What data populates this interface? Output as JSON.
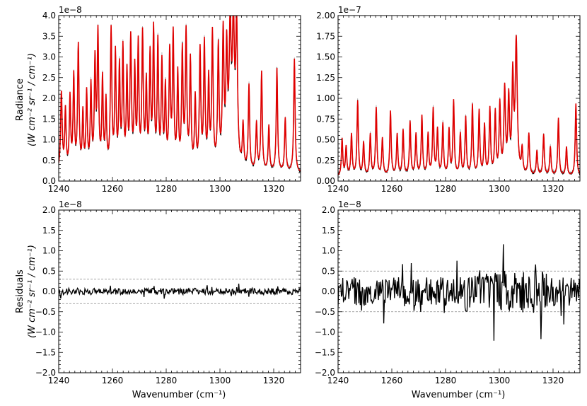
{
  "figure": {
    "xlabel": "Wavenumber (cm⁻¹)",
    "ylabel_top": "Radiance",
    "ylabel_top_units": "(W cm⁻² sr⁻¹ / cm⁻¹)",
    "ylabel_bottom": "Residuals",
    "ylabel_bottom_units": "(W cm⁻² sr⁻¹ / cm⁻¹)"
  },
  "chart_data": [
    {
      "type": "line",
      "panel": "top-left",
      "xlabel": "",
      "ylabel": "Radiance (W cm⁻² sr⁻¹ / cm⁻¹)",
      "xlim": [
        1240,
        1330
      ],
      "ylim": [
        0,
        4.0
      ],
      "offset_label": "1e−8",
      "xticks": [
        1240,
        1260,
        1280,
        1300,
        1320
      ],
      "yticks": [
        "0.0",
        "0.5",
        "1.0",
        "1.5",
        "2.0",
        "2.5",
        "3.0",
        "3.5",
        "4.0"
      ],
      "series_colors": {
        "observed": "#000000",
        "model": "#e00000",
        "upper": "#aaaaaa"
      },
      "peaks": [
        [
          1241.0,
          1.9,
          0.35
        ],
        [
          1242.5,
          1.45,
          0.3
        ],
        [
          1244.2,
          1.75,
          0.3
        ],
        [
          1245.6,
          2.25,
          0.3
        ],
        [
          1247.3,
          3.0,
          0.32
        ],
        [
          1249.0,
          1.35,
          0.28
        ],
        [
          1250.4,
          1.85,
          0.3
        ],
        [
          1252.0,
          2.0,
          0.3
        ],
        [
          1253.5,
          2.55,
          0.3
        ],
        [
          1254.6,
          3.25,
          0.32
        ],
        [
          1256.3,
          2.15,
          0.3
        ],
        [
          1257.6,
          1.6,
          0.28
        ],
        [
          1259.5,
          3.35,
          0.32
        ],
        [
          1261.1,
          2.75,
          0.3
        ],
        [
          1262.6,
          2.4,
          0.3
        ],
        [
          1263.9,
          2.85,
          0.3
        ],
        [
          1265.4,
          2.25,
          0.3
        ],
        [
          1266.8,
          3.1,
          0.32
        ],
        [
          1268.3,
          2.35,
          0.3
        ],
        [
          1269.6,
          2.95,
          0.3
        ],
        [
          1271.2,
          3.2,
          0.32
        ],
        [
          1272.6,
          2.0,
          0.3
        ],
        [
          1274.0,
          2.65,
          0.3
        ],
        [
          1275.3,
          3.3,
          0.32
        ],
        [
          1276.9,
          3.0,
          0.3
        ],
        [
          1278.4,
          2.5,
          0.3
        ],
        [
          1279.7,
          1.9,
          0.3
        ],
        [
          1281.3,
          2.75,
          0.32
        ],
        [
          1282.6,
          3.2,
          0.32
        ],
        [
          1284.3,
          2.25,
          0.3
        ],
        [
          1286.0,
          2.8,
          0.32
        ],
        [
          1287.4,
          3.25,
          0.32
        ],
        [
          1289.0,
          2.6,
          0.3
        ],
        [
          1290.8,
          1.7,
          0.3
        ],
        [
          1292.6,
          2.85,
          0.32
        ],
        [
          1294.2,
          3.0,
          0.32
        ],
        [
          1295.8,
          2.1,
          0.3
        ],
        [
          1297.2,
          3.25,
          0.32
        ],
        [
          1299.4,
          2.9,
          0.32
        ],
        [
          1301.2,
          3.2,
          0.35
        ],
        [
          1302.5,
          2.7,
          0.35
        ],
        [
          1303.8,
          3.25,
          0.45
        ],
        [
          1305.0,
          3.35,
          0.45
        ],
        [
          1306.2,
          3.4,
          0.4
        ],
        [
          1308.6,
          1.05,
          0.3
        ],
        [
          1310.8,
          2.05,
          0.3
        ],
        [
          1313.6,
          1.15,
          0.3
        ],
        [
          1315.5,
          2.4,
          0.3
        ],
        [
          1318.2,
          1.1,
          0.3
        ],
        [
          1321.2,
          2.5,
          0.3
        ],
        [
          1324.3,
          1.3,
          0.3
        ],
        [
          1327.7,
          2.75,
          0.3
        ]
      ],
      "baseline": 0.18
    },
    {
      "type": "line",
      "panel": "top-right",
      "xlabel": "",
      "ylabel": "",
      "xlim": [
        1240,
        1330
      ],
      "ylim": [
        0,
        2.0
      ],
      "offset_label": "1e−7",
      "xticks": [
        1240,
        1260,
        1280,
        1300,
        1320
      ],
      "yticks": [
        "0.00",
        "0.25",
        "0.50",
        "0.75",
        "1.00",
        "1.25",
        "1.50",
        "1.75",
        "2.00"
      ],
      "series_colors": {
        "observed": "#000000",
        "model": "#e00000",
        "upper": "#aaaaaa"
      },
      "peaks": [
        [
          1241.5,
          0.45,
          0.3
        ],
        [
          1243.0,
          0.35,
          0.3
        ],
        [
          1245.0,
          0.5,
          0.3
        ],
        [
          1247.3,
          0.9,
          0.3
        ],
        [
          1249.5,
          0.4,
          0.3
        ],
        [
          1252.0,
          0.5,
          0.3
        ],
        [
          1254.2,
          0.82,
          0.3
        ],
        [
          1256.5,
          0.45,
          0.3
        ],
        [
          1259.5,
          0.78,
          0.3
        ],
        [
          1262.0,
          0.5,
          0.3
        ],
        [
          1264.2,
          0.55,
          0.3
        ],
        [
          1266.8,
          0.65,
          0.3
        ],
        [
          1269.0,
          0.5,
          0.3
        ],
        [
          1271.2,
          0.72,
          0.3
        ],
        [
          1273.5,
          0.5,
          0.3
        ],
        [
          1275.4,
          0.8,
          0.3
        ],
        [
          1277.0,
          0.55,
          0.3
        ],
        [
          1279.0,
          0.62,
          0.3
        ],
        [
          1281.3,
          0.55,
          0.3
        ],
        [
          1283.0,
          0.9,
          0.3
        ],
        [
          1285.5,
          0.5,
          0.3
        ],
        [
          1287.5,
          0.7,
          0.3
        ],
        [
          1290.0,
          0.85,
          0.3
        ],
        [
          1292.5,
          0.78,
          0.3
        ],
        [
          1294.5,
          0.6,
          0.3
        ],
        [
          1296.5,
          0.8,
          0.3
        ],
        [
          1298.5,
          0.75,
          0.3
        ],
        [
          1300.2,
          0.85,
          0.32
        ],
        [
          1302.0,
          1.02,
          0.35
        ],
        [
          1303.5,
          0.9,
          0.35
        ],
        [
          1305.0,
          1.15,
          0.35
        ],
        [
          1306.3,
          1.6,
          0.45
        ],
        [
          1308.5,
          0.3,
          0.3
        ],
        [
          1311.0,
          0.5,
          0.3
        ],
        [
          1314.0,
          0.3,
          0.3
        ],
        [
          1316.5,
          0.5,
          0.3
        ],
        [
          1319.0,
          0.35,
          0.3
        ],
        [
          1322.0,
          0.7,
          0.3
        ],
        [
          1325.0,
          0.35,
          0.3
        ],
        [
          1328.5,
          0.88,
          0.3
        ]
      ],
      "baseline": 0.05
    },
    {
      "type": "line",
      "panel": "bottom-left",
      "xlabel": "Wavenumber (cm⁻¹)",
      "ylabel": "Residuals (W cm⁻² sr⁻¹ / cm⁻¹)",
      "xlim": [
        1240,
        1330
      ],
      "ylim": [
        -2.0,
        2.0
      ],
      "offset_label": "1e−8",
      "xticks": [
        1240,
        1260,
        1280,
        1300,
        1320
      ],
      "yticks": [
        "−2.0",
        "−1.5",
        "−1.0",
        "−0.5",
        "0.0",
        "0.5",
        "1.0",
        "1.5",
        "2.0"
      ],
      "threshold_lines": [
        0.3,
        -0.3
      ],
      "residual_amplitude": 0.08,
      "series_colors": {
        "residual": "#000000",
        "threshold": "#888888"
      }
    },
    {
      "type": "line",
      "panel": "bottom-right",
      "xlabel": "Wavenumber (cm⁻¹)",
      "ylabel": "",
      "xlim": [
        1240,
        1330
      ],
      "ylim": [
        -2.0,
        2.0
      ],
      "offset_label": "1e−8",
      "xticks": [
        1240,
        1260,
        1280,
        1300,
        1320
      ],
      "yticks": [
        "−2.0",
        "−1.5",
        "−1.0",
        "−0.5",
        "0.0",
        "0.5",
        "1.0",
        "1.5",
        "2.0"
      ],
      "threshold_lines": [
        0.5,
        -0.5
      ],
      "residual_amplitude": 0.35,
      "series_colors": {
        "residual": "#000000",
        "threshold": "#888888"
      }
    }
  ]
}
